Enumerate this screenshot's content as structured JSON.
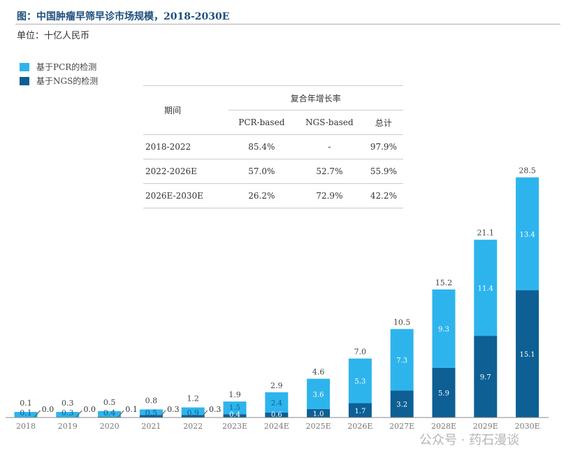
{
  "title": "图：中国肿瘤早筛早诊市场规模，2018-2030E",
  "unit": "单位：十亿人民币",
  "watermark": "公众号 · 药石漫谈",
  "colors": {
    "pcr": "#2eb4ec",
    "ngs": "#0d5f94",
    "title": "#1f4f7f"
  },
  "table": {
    "group_header": "复合年增长率",
    "period_header": "期间",
    "columns": [
      "PCR-based",
      "NGS-based",
      "总计"
    ],
    "rows": [
      {
        "period": "2018-2022",
        "values": [
          "85.4%",
          "-",
          "97.9%"
        ]
      },
      {
        "period": "2022-2026E",
        "values": [
          "57.0%",
          "52.7%",
          "55.9%"
        ]
      },
      {
        "period": "2026E-2030E",
        "values": [
          "26.2%",
          "72.9%",
          "42.2%"
        ]
      }
    ]
  },
  "chart_data": {
    "type": "bar",
    "stacked": true,
    "title": "图：中国肿瘤早筛早诊市场规模，2018-2030E",
    "ylabel": "十亿人民币",
    "categories": [
      "2018",
      "2019",
      "2020",
      "2021",
      "2022",
      "2023E",
      "2024E",
      "2025E",
      "2026E",
      "2027E",
      "2028E",
      "2029E",
      "2030E"
    ],
    "series": [
      {
        "name": "基于NGS的检测",
        "values": [
          0.0,
          0.0,
          0.1,
          0.3,
          0.3,
          0.4,
          0.6,
          1.0,
          1.7,
          3.2,
          5.9,
          9.7,
          15.1
        ]
      },
      {
        "name": "基于PCR的检测",
        "values": [
          0.1,
          0.3,
          0.4,
          0.5,
          0.9,
          1.5,
          2.4,
          3.6,
          5.3,
          7.3,
          9.3,
          11.4,
          13.4
        ]
      }
    ],
    "totals": [
      "0.1",
      "0.3",
      "0.5",
      "0.8",
      "1.2",
      "1.9",
      "2.9",
      "4.6",
      "7.0",
      "10.5",
      "15.2",
      "21.1",
      "28.5"
    ],
    "ylim": [
      0,
      30
    ],
    "legend": "top-left",
    "grid": false
  }
}
